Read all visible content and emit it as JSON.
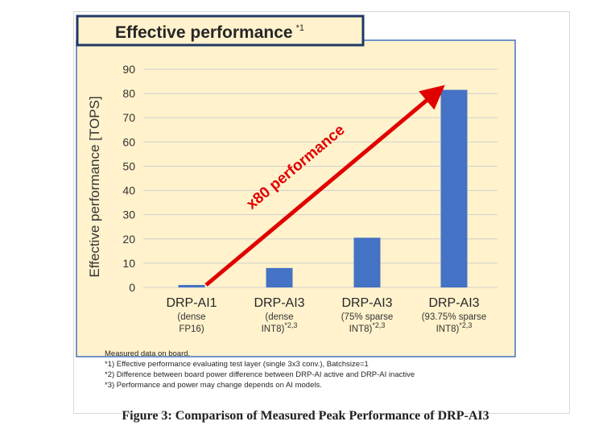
{
  "chart_data": {
    "type": "bar",
    "title": "Effective performance",
    "title_note": "*1",
    "ylabel": "Effective performance [TOPS]",
    "xlabel": "",
    "ylim": [
      0,
      90
    ],
    "yticks": [
      0,
      10,
      20,
      30,
      40,
      50,
      60,
      70,
      80,
      90
    ],
    "grid": true,
    "legend": "none",
    "categories": [
      {
        "name": "DRP-AI1",
        "sub1": "(dense",
        "sub2": "FP16)",
        "note": ""
      },
      {
        "name": "DRP-AI3",
        "sub1": "(dense",
        "sub2": "INT8)",
        "note": "*2,3"
      },
      {
        "name": "DRP-AI3",
        "sub1": "(75% sparse",
        "sub2": "INT8)",
        "note": "*2,3"
      },
      {
        "name": "DRP-AI3",
        "sub1": "(93.75% sparse",
        "sub2": "INT8)",
        "note": "*2,3"
      }
    ],
    "values": [
      1,
      8,
      20.5,
      81.5
    ],
    "annotation": "x80 performance",
    "colors": {
      "bar": "#4472c4",
      "arrow": "#e00000",
      "panel_bg": "#fff2cc",
      "title_bg": "#fff2cc",
      "title_border": "#1f3864"
    }
  },
  "notes": [
    "Measured data on board.",
    "*1) Effective performance evaluating test layer (single 3x3 conv.),  Batchsize=1",
    "*2) Difference between board power difference between DRP-AI active and DRP-AI inactive",
    "*3) Performance and power may change depends on AI models."
  ],
  "caption": "Figure 3: Comparison of Measured Peak Performance of DRP-AI3"
}
